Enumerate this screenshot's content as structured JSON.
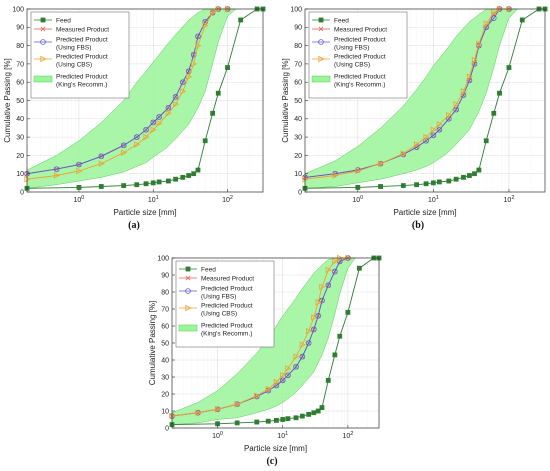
{
  "colors": {
    "feed": "#2e7d32",
    "measured": "#e05a5a",
    "fbs": "#5b5bd6",
    "cbs": "#f0a030",
    "band": "#9af59a",
    "band_edge": "#5cc95c"
  },
  "chart_data": [
    {
      "type": "line",
      "caption": "(a)",
      "xlabel": "Particle size [mm]",
      "ylabel": "Cumulative Passing [%]",
      "xscale": "log",
      "xlim": [
        0.2,
        300
      ],
      "ylim": [
        0,
        100
      ],
      "xticks": [
        {
          "value": 1,
          "label": "10^0"
        },
        {
          "value": 10,
          "label": "10^1"
        },
        {
          "value": 100,
          "label": "10^2"
        }
      ],
      "yticks": [
        0,
        10,
        20,
        30,
        40,
        50,
        60,
        70,
        80,
        90,
        100
      ],
      "grid": true,
      "legend_position": "top-left",
      "legend": [
        "Feed",
        "Measured Product",
        "Predicted Product (Using FBS)",
        "Predicted Product (Using CBS)",
        "Predicted Product (King's Recomm.)"
      ],
      "series": [
        {
          "name": "Feed",
          "marker": "square",
          "color": "#2e7d32",
          "x": [
            0.2,
            1,
            2,
            4,
            6,
            8,
            10,
            12,
            16,
            20,
            25,
            30,
            35,
            40,
            50,
            63,
            75,
            100,
            150,
            250,
            300
          ],
          "y": [
            2,
            2.5,
            3,
            3.5,
            4,
            4.5,
            5,
            5.5,
            6,
            7,
            8,
            9,
            10,
            12,
            28,
            43,
            54,
            68,
            94,
            100,
            100
          ]
        },
        {
          "name": "Measured Product",
          "marker": "x",
          "color": "#e05a5a",
          "x": [
            0.2,
            0.5,
            1,
            2,
            4,
            6,
            8,
            10,
            12,
            16,
            20,
            25,
            30,
            35,
            40,
            50,
            63,
            75,
            100
          ],
          "y": [
            10,
            12.5,
            15,
            19.5,
            25.5,
            30,
            34,
            38,
            41,
            46,
            52,
            60,
            66,
            75,
            85,
            93,
            98,
            100,
            100
          ]
        },
        {
          "name": "Predicted Product (Using FBS)",
          "marker": "circle",
          "color": "#5b5bd6",
          "x": [
            0.2,
            0.5,
            1,
            2,
            4,
            6,
            8,
            10,
            12,
            16,
            20,
            25,
            30,
            35,
            40,
            50,
            63,
            75,
            100
          ],
          "y": [
            10,
            12.5,
            15,
            19.5,
            25.5,
            30,
            34,
            38,
            41,
            46,
            52,
            60,
            66,
            75,
            85,
            93,
            98,
            100,
            100
          ]
        },
        {
          "name": "Predicted Product (Using CBS)",
          "marker": "triangle-right",
          "color": "#f0a030",
          "x": [
            0.2,
            0.5,
            1,
            2,
            4,
            6,
            8,
            10,
            12,
            16,
            20,
            25,
            30,
            35,
            40,
            50,
            63,
            75,
            100
          ],
          "y": [
            7,
            9,
            11.5,
            15.5,
            21.5,
            26,
            30,
            34,
            37.5,
            43,
            48,
            55,
            63,
            70,
            80,
            91,
            98,
            100,
            100
          ]
        }
      ],
      "band": {
        "name": "Predicted Product (King's Recomm.)",
        "upper": {
          "x": [
            0.2,
            0.5,
            1,
            2,
            4,
            6,
            8,
            10,
            15,
            20,
            30,
            40,
            50,
            63,
            75
          ],
          "y": [
            12,
            20,
            28,
            38,
            50,
            60,
            66,
            71,
            80,
            86,
            94,
            98,
            100,
            100,
            100
          ]
        },
        "lower": {
          "x": [
            0.2,
            0.5,
            1,
            2,
            4,
            6,
            8,
            10,
            15,
            20,
            30,
            40,
            50,
            63,
            75,
            100,
            130
          ],
          "y": [
            2,
            4,
            6,
            8,
            11,
            14,
            16,
            19,
            24,
            29,
            37,
            46,
            55,
            70,
            82,
            96,
            100
          ]
        }
      }
    },
    {
      "type": "line",
      "caption": "(b)",
      "xlabel": "Particle size [mm]",
      "ylabel": "Cumulative Passing [%]",
      "xscale": "log",
      "xlim": [
        0.2,
        300
      ],
      "ylim": [
        0,
        100
      ],
      "xticks": [
        {
          "value": 1,
          "label": "10^0"
        },
        {
          "value": 10,
          "label": "10^1"
        },
        {
          "value": 100,
          "label": "10^2"
        }
      ],
      "yticks": [
        0,
        10,
        20,
        30,
        40,
        50,
        60,
        70,
        80,
        90,
        100
      ],
      "grid": true,
      "legend_position": "top-left",
      "legend": [
        "Feed",
        "Measured Product",
        "Predicted Product (Using FBS)",
        "Predicted Product (Using CBS)",
        "Predicted Product (King's Recomm.)"
      ],
      "series": [
        {
          "name": "Feed",
          "marker": "square",
          "color": "#2e7d32",
          "x": [
            0.2,
            1,
            2,
            4,
            6,
            8,
            10,
            12,
            16,
            20,
            25,
            30,
            35,
            40,
            50,
            63,
            75,
            100,
            150,
            250,
            300
          ],
          "y": [
            2,
            2.5,
            3,
            3.5,
            4,
            4.5,
            5,
            5.5,
            6,
            7,
            8,
            9,
            10,
            12,
            28,
            43,
            54,
            68,
            94,
            100,
            100
          ]
        },
        {
          "name": "Measured Product",
          "marker": "x",
          "color": "#e05a5a",
          "x": [
            0.2,
            0.5,
            1,
            2,
            4,
            6,
            8,
            10,
            12,
            16,
            20,
            25,
            30,
            35,
            40,
            50,
            63,
            75,
            100
          ],
          "y": [
            8,
            10,
            12,
            15.5,
            20.5,
            24.5,
            28,
            31,
            34,
            40,
            45,
            53,
            61,
            70,
            80,
            90,
            97,
            100,
            100
          ]
        },
        {
          "name": "Predicted Product (Using FBS)",
          "marker": "circle",
          "color": "#5b5bd6",
          "x": [
            0.2,
            0.5,
            1,
            2,
            4,
            6,
            8,
            10,
            12,
            16,
            20,
            25,
            30,
            35,
            40,
            50,
            63,
            75,
            100
          ],
          "y": [
            8,
            10,
            12,
            15.5,
            20.5,
            24.5,
            28,
            31,
            34,
            40,
            45,
            53,
            61,
            70,
            80,
            90,
            95,
            100,
            100
          ]
        },
        {
          "name": "Predicted Product (Using CBS)",
          "marker": "triangle-right",
          "color": "#f0a030",
          "x": [
            0.2,
            0.5,
            1,
            2,
            4,
            6,
            8,
            10,
            12,
            16,
            20,
            25,
            30,
            35,
            40,
            50,
            63,
            75,
            100
          ],
          "y": [
            7,
            9,
            11.5,
            15.5,
            21,
            26,
            30,
            34,
            37,
            42,
            48,
            55,
            63,
            72,
            81,
            92,
            98,
            100,
            100
          ]
        }
      ],
      "band": {
        "name": "Predicted Product (King's Recomm.)",
        "upper": {
          "x": [
            0.2,
            0.5,
            1,
            2,
            4,
            6,
            8,
            10,
            15,
            20,
            30,
            40,
            50,
            63,
            75
          ],
          "y": [
            10,
            17,
            25,
            35,
            47,
            56,
            63,
            69,
            78,
            85,
            93,
            97,
            100,
            100,
            100
          ]
        },
        "lower": {
          "x": [
            0.2,
            0.5,
            1,
            2,
            4,
            6,
            8,
            10,
            15,
            20,
            30,
            40,
            50,
            63,
            75,
            100,
            130
          ],
          "y": [
            2,
            3,
            5,
            7,
            10,
            12,
            14,
            16,
            21,
            26,
            34,
            44,
            54,
            68,
            80,
            95,
            100
          ]
        }
      }
    },
    {
      "type": "line",
      "caption": "(c)",
      "xlabel": "Particle size [mm]",
      "ylabel": "Cumulative Passing [%]",
      "xscale": "log",
      "xlim": [
        0.2,
        300
      ],
      "ylim": [
        0,
        100
      ],
      "xticks": [
        {
          "value": 1,
          "label": "10^0"
        },
        {
          "value": 10,
          "label": "10^1"
        },
        {
          "value": 100,
          "label": "10^2"
        }
      ],
      "yticks": [
        0,
        10,
        20,
        30,
        40,
        50,
        60,
        70,
        80,
        90,
        100
      ],
      "grid": true,
      "legend_position": "top-left",
      "legend": [
        "Feed",
        "Measured Product",
        "Predicted Product (Using FBS)",
        "Predicted Product (Using CBS)",
        "Predicted Product (King's Recomm.)"
      ],
      "series": [
        {
          "name": "Feed",
          "marker": "square",
          "color": "#2e7d32",
          "x": [
            0.2,
            1,
            2,
            4,
            6,
            8,
            10,
            12,
            16,
            20,
            25,
            30,
            35,
            40,
            50,
            63,
            75,
            100,
            150,
            250,
            300
          ],
          "y": [
            2,
            2.5,
            3,
            3.5,
            4,
            4.5,
            5,
            5.5,
            6,
            7,
            8,
            9,
            10,
            12,
            28,
            43,
            54,
            68,
            94,
            100,
            100
          ]
        },
        {
          "name": "Measured Product",
          "marker": "x",
          "color": "#e05a5a",
          "x": [
            0.2,
            0.5,
            1,
            2,
            4,
            6,
            8,
            10,
            12,
            16,
            20,
            25,
            30,
            35,
            40,
            50,
            63,
            75,
            100
          ],
          "y": [
            7,
            9,
            11,
            14,
            18.5,
            22,
            25,
            28,
            31,
            36,
            42,
            50,
            58,
            66,
            75,
            84,
            92,
            98,
            100
          ]
        },
        {
          "name": "Predicted Product (Using FBS)",
          "marker": "circle",
          "color": "#5b5bd6",
          "x": [
            0.2,
            0.5,
            1,
            2,
            4,
            6,
            8,
            10,
            12,
            16,
            20,
            25,
            30,
            35,
            40,
            50,
            63,
            75,
            100
          ],
          "y": [
            7,
            9,
            11,
            14,
            18.5,
            22,
            25,
            28,
            31,
            36,
            42,
            50,
            58,
            66,
            75,
            84,
            92,
            98,
            100
          ]
        },
        {
          "name": "Predicted Product (Using CBS)",
          "marker": "triangle-right",
          "color": "#f0a030",
          "x": [
            0.2,
            0.5,
            1,
            2,
            4,
            6,
            8,
            10,
            12,
            16,
            20,
            25,
            30,
            35,
            40,
            50,
            63,
            75,
            100
          ],
          "y": [
            7,
            9,
            11,
            14,
            19,
            23,
            27,
            31,
            35,
            42,
            49,
            57,
            65,
            74,
            83,
            93,
            98,
            100,
            100
          ]
        }
      ],
      "band": {
        "name": "Predicted Product (King's Recomm.)",
        "upper": {
          "x": [
            0.2,
            0.5,
            1,
            2,
            4,
            6,
            8,
            10,
            15,
            20,
            30,
            40,
            50,
            63,
            75
          ],
          "y": [
            9,
            15,
            22,
            32,
            44,
            53,
            60,
            66,
            75,
            82,
            91,
            96,
            99,
            100,
            100
          ]
        },
        "lower": {
          "x": [
            0.2,
            0.5,
            1,
            2,
            4,
            6,
            8,
            10,
            15,
            20,
            30,
            40,
            50,
            63,
            75,
            100,
            130
          ],
          "y": [
            2,
            3,
            5,
            6,
            9,
            11,
            13,
            15,
            20,
            25,
            33,
            43,
            53,
            67,
            79,
            94,
            100
          ]
        }
      }
    }
  ]
}
